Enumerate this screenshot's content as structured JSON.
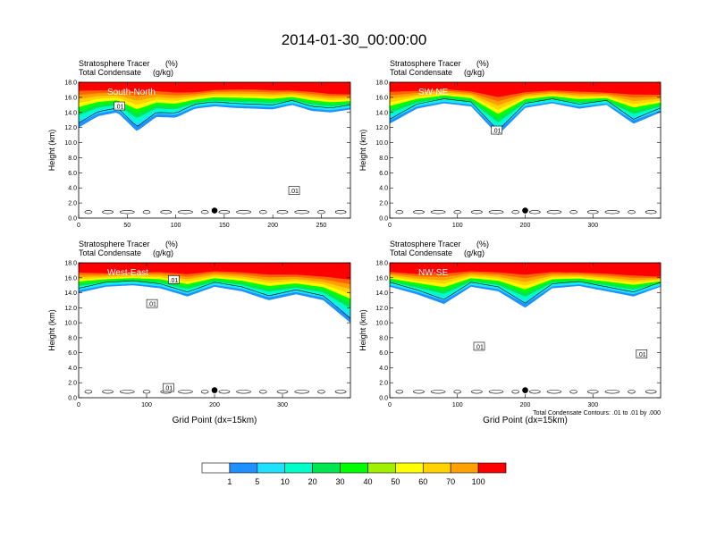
{
  "figure_title": "2014-01-30_00:00:00",
  "colors": {
    "levels": [
      "#ffffff",
      "#1e90ff",
      "#1ee1ff",
      "#00ffc8",
      "#00e650",
      "#00ff00",
      "#a0f000",
      "#ffff00",
      "#ffd200",
      "#ffa000",
      "#ff6400",
      "#ff0000"
    ],
    "contour": "#000000"
  },
  "colorbar": {
    "labels": [
      "1",
      "5",
      "10",
      "20",
      "30",
      "40",
      "50",
      "60",
      "70",
      "100"
    ]
  },
  "contour_note": "Total Condensate Contours: .01 to .01 by .000",
  "chart_data": [
    {
      "type": "heatmap",
      "title": "South-North",
      "subtitle_left_1": "Stratosphere Tracer",
      "subtitle_right_1": "(%)",
      "subtitle_left_2": "Total Condensate",
      "subtitle_right_2": "(g/kg)",
      "xlabel": "",
      "ylabel": "Height (km)",
      "xlim": [
        0,
        280
      ],
      "ylim": [
        0,
        18
      ],
      "xticks": [
        0,
        50,
        100,
        150,
        200,
        250
      ],
      "yticks": [
        "0.0",
        "2.0",
        "4.0",
        "6.0",
        "8.0",
        "10.0",
        "12.0",
        "14.0",
        "16.0",
        "18.0"
      ],
      "marker": {
        "x": 140,
        "y": 1.0
      },
      "contour_labels": [
        {
          "text": ".01",
          "x": 42,
          "y": 14.8
        },
        {
          "text": ".01",
          "x": 222,
          "y": 3.6
        }
      ],
      "tracer_profile": {
        "x": [
          0,
          20,
          40,
          60,
          80,
          100,
          120,
          140,
          160,
          180,
          200,
          220,
          240,
          260,
          280
        ],
        "top_red": [
          17.4,
          17.3,
          17.2,
          17.3,
          17.2,
          17.0,
          16.9,
          17.2,
          17.3,
          17.3,
          17.2,
          17.1,
          17.0,
          16.7,
          16.6
        ],
        "blue_bottom": [
          12.0,
          13.5,
          14.0,
          11.5,
          13.4,
          13.3,
          14.5,
          14.8,
          14.6,
          14.5,
          14.4,
          15.0,
          14.2,
          14.0,
          14.4
        ]
      }
    },
    {
      "type": "heatmap",
      "title": "SW-NE",
      "subtitle_left_1": "Stratosphere Tracer",
      "subtitle_right_1": "(%)",
      "subtitle_left_2": "Total Condensate",
      "subtitle_right_2": "(g/kg)",
      "xlabel": "",
      "ylabel": "Height (km)",
      "xlim": [
        0,
        400
      ],
      "ylim": [
        0,
        18
      ],
      "xticks": [
        0,
        100,
        200,
        300
      ],
      "yticks": [
        "0.0",
        "2.0",
        "4.0",
        "6.0",
        "8.0",
        "10.0",
        "12.0",
        "14.0",
        "16.0",
        "18.0"
      ],
      "marker": {
        "x": 200,
        "y": 1.0
      },
      "contour_labels": [
        {
          "text": ".01",
          "x": 158,
          "y": 11.6
        }
      ],
      "tracer_profile": {
        "x": [
          0,
          40,
          80,
          120,
          160,
          200,
          240,
          280,
          320,
          360,
          400
        ],
        "top_red": [
          17.2,
          17.1,
          17.3,
          17.0,
          16.6,
          16.9,
          17.1,
          17.0,
          16.8,
          16.8,
          16.6
        ],
        "blue_bottom": [
          12.5,
          14.5,
          15.2,
          14.8,
          11.0,
          14.6,
          15.2,
          14.5,
          15.0,
          12.5,
          14.0
        ]
      }
    },
    {
      "type": "heatmap",
      "title": "West-East",
      "subtitle_left_1": "Stratosphere Tracer",
      "subtitle_right_1": "(%)",
      "subtitle_left_2": "Total Condensate",
      "subtitle_right_2": "(g/kg)",
      "xlabel": "Grid Point (dx=15km)",
      "ylabel": "Height (km)",
      "xlim": [
        0,
        400
      ],
      "ylim": [
        0,
        18
      ],
      "xticks": [
        0,
        100,
        200,
        300
      ],
      "yticks": [
        "0.0",
        "2.0",
        "4.0",
        "6.0",
        "8.0",
        "10.0",
        "12.0",
        "14.0",
        "16.0",
        "18.0"
      ],
      "marker": {
        "x": 200,
        "y": 1.0
      },
      "contour_labels": [
        {
          "text": ".01",
          "x": 140,
          "y": 15.7
        },
        {
          "text": ".01",
          "x": 108,
          "y": 12.5
        },
        {
          "text": ".01",
          "x": 132,
          "y": 1.3
        }
      ],
      "tracer_profile": {
        "x": [
          0,
          40,
          80,
          120,
          160,
          200,
          240,
          280,
          320,
          360,
          400
        ],
        "top_red": [
          17.0,
          16.8,
          16.9,
          17.0,
          16.8,
          17.1,
          17.0,
          16.8,
          16.7,
          16.5,
          16.4
        ],
        "blue_bottom": [
          14.0,
          14.8,
          15.0,
          14.6,
          13.5,
          14.8,
          14.2,
          13.0,
          13.8,
          13.0,
          10.0
        ]
      }
    },
    {
      "type": "heatmap",
      "title": "NW-SE",
      "subtitle_left_1": "Stratosphere Tracer",
      "subtitle_right_1": "(%)",
      "subtitle_left_2": "Total Condensate",
      "subtitle_right_2": "(g/kg)",
      "xlabel": "Grid Point (dx=15km)",
      "ylabel": "Height (km)",
      "xlim": [
        0,
        400
      ],
      "ylim": [
        0,
        18
      ],
      "xticks": [
        0,
        100,
        200,
        300
      ],
      "yticks": [
        "0.0",
        "2.0",
        "4.0",
        "6.0",
        "8.0",
        "10.0",
        "12.0",
        "14.0",
        "16.0",
        "18.0"
      ],
      "marker": {
        "x": 200,
        "y": 1.0
      },
      "contour_labels": [
        {
          "text": ".01",
          "x": 132,
          "y": 6.8
        },
        {
          "text": ".01",
          "x": 372,
          "y": 5.8
        }
      ],
      "tracer_profile": {
        "x": [
          0,
          40,
          80,
          120,
          160,
          200,
          240,
          280,
          320,
          360,
          400
        ],
        "top_red": [
          17.0,
          16.8,
          17.0,
          17.1,
          17.0,
          16.9,
          17.0,
          16.9,
          16.8,
          16.6,
          16.3
        ],
        "blue_bottom": [
          14.8,
          13.8,
          12.5,
          14.8,
          14.2,
          12.0,
          14.6,
          14.9,
          14.2,
          13.5,
          14.8
        ]
      }
    }
  ]
}
